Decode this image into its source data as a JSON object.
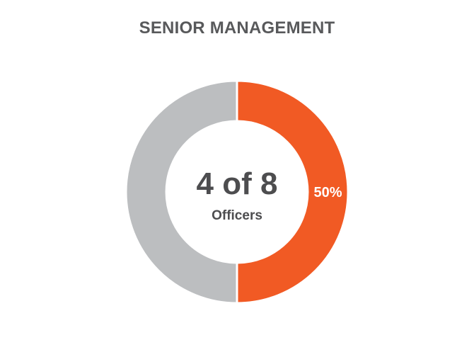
{
  "chart_data": {
    "type": "pie",
    "title": "SENIOR MANAGEMENT",
    "center_value": "4 of 8",
    "center_caption": "Officers",
    "slices": [
      {
        "value": 50,
        "data_label": "50%",
        "color": "#f15a24"
      },
      {
        "value": 50,
        "data_label": "",
        "color": "#bcbec0"
      }
    ]
  }
}
